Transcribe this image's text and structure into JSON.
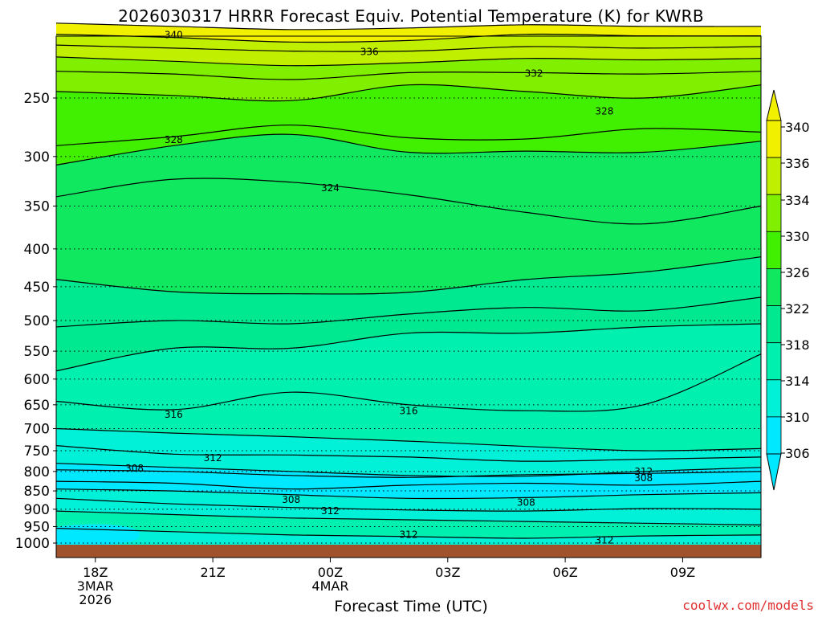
{
  "title": "2026030317 HRRR Forecast Equiv. Potential Temperature (K) for KWRB",
  "credit": "coolwx.com/models",
  "colors": {
    "c1": "#00e8ff",
    "c2": "#00f0d8",
    "c3": "#00f0b0",
    "c4": "#00e890",
    "c5": "#10e860",
    "c6": "#40f000",
    "c7": "#80f000",
    "c8": "#c0f000",
    "c9": "#f0f000",
    "ground": "#a0522d"
  },
  "chart_data": {
    "type": "contour",
    "title": "2026030317 HRRR Forecast Equiv. Potential Temperature (K) for KWRB",
    "xlabel": "Forecast Time (UTC)",
    "ylabel": "",
    "x_ticks": [
      {
        "label": "18Z",
        "sub": [
          "3MAR",
          "2026"
        ],
        "hour": 1
      },
      {
        "label": "21Z",
        "sub": [],
        "hour": 4
      },
      {
        "label": "00Z",
        "sub": [
          "4MAR"
        ],
        "hour": 7
      },
      {
        "label": "03Z",
        "sub": [],
        "hour": 10
      },
      {
        "label": "06Z",
        "sub": [],
        "hour": 13
      },
      {
        "label": "09Z",
        "sub": [],
        "hour": 16
      }
    ],
    "xlim_hours": [
      0,
      18
    ],
    "y_ticks": [
      "250",
      "300",
      "350",
      "400",
      "450",
      "500",
      "550",
      "600",
      "650",
      "700",
      "750",
      "800",
      "850",
      "900",
      "950",
      "1000"
    ],
    "y_values": [
      250,
      300,
      350,
      400,
      450,
      500,
      550,
      600,
      650,
      700,
      750,
      800,
      850,
      900,
      950,
      1000
    ],
    "ylim_hpa": [
      200,
      1000
    ],
    "colorbar_labels": [
      "340",
      "336",
      "334",
      "330",
      "326",
      "322",
      "318",
      "314",
      "310",
      "306"
    ],
    "contour_labels": [
      {
        "text": "340",
        "hour": 3.0,
        "hpa": 205
      },
      {
        "text": "336",
        "hour": 8.0,
        "hpa": 216
      },
      {
        "text": "332",
        "hour": 12.2,
        "hpa": 231
      },
      {
        "text": "328",
        "hour": 14.0,
        "hpa": 260
      },
      {
        "text": "328",
        "hour": 3.0,
        "hpa": 284
      },
      {
        "text": "324",
        "hour": 7.0,
        "hpa": 330
      },
      {
        "text": "316",
        "hour": 3.0,
        "hpa": 668
      },
      {
        "text": "316",
        "hour": 9.0,
        "hpa": 661
      },
      {
        "text": "312",
        "hour": 4.0,
        "hpa": 765
      },
      {
        "text": "308",
        "hour": 2.0,
        "hpa": 790
      },
      {
        "text": "312",
        "hour": 15.0,
        "hpa": 798
      },
      {
        "text": "308",
        "hour": 15.0,
        "hpa": 815
      },
      {
        "text": "308",
        "hour": 6.0,
        "hpa": 871
      },
      {
        "text": "308",
        "hour": 12.0,
        "hpa": 879
      },
      {
        "text": "312",
        "hour": 7.0,
        "hpa": 903
      },
      {
        "text": "312",
        "hour": 9.0,
        "hpa": 972
      },
      {
        "text": "312",
        "hour": 14.0,
        "hpa": 989
      }
    ],
    "isentropes": [
      {
        "theta": 340,
        "hpa": [
          198,
          200,
          202,
          201,
          199,
          200,
          200
        ]
      },
      {
        "theta": 338,
        "hpa": [
          205,
          207,
          210,
          209,
          205,
          206,
          206
        ]
      },
      {
        "theta": 336,
        "hpa": [
          212,
          214,
          216,
          216,
          213,
          214,
          213
        ]
      },
      {
        "theta": 334,
        "hpa": [
          220,
          223,
          226,
          224,
          221,
          222,
          221
        ]
      },
      {
        "theta": 332,
        "hpa": [
          230,
          232,
          236,
          231,
          231,
          232,
          230
        ]
      },
      {
        "theta": 330,
        "hpa": [
          245,
          248,
          252,
          240,
          245,
          250,
          240
        ]
      },
      {
        "theta": 328,
        "hpa": [
          290,
          282,
          272,
          283,
          284,
          275,
          278
        ]
      },
      {
        "theta": 326,
        "hpa": [
          308,
          290,
          280,
          296,
          295,
          296,
          286
        ]
      },
      {
        "theta": 324,
        "hpa": [
          340,
          322,
          325,
          338,
          357,
          370,
          350
        ]
      },
      {
        "theta": 322,
        "hpa": [
          440,
          457,
          460,
          458,
          440,
          430,
          410
        ]
      },
      {
        "theta": 320,
        "hpa": [
          510,
          500,
          505,
          490,
          480,
          485,
          465
        ]
      },
      {
        "theta": 318,
        "hpa": [
          585,
          545,
          545,
          520,
          520,
          510,
          505
        ]
      },
      {
        "theta": 316,
        "hpa": [
          643,
          660,
          625,
          650,
          662,
          650,
          555
        ]
      },
      {
        "theta": 314,
        "hpa": [
          700,
          710,
          718,
          728,
          740,
          750,
          745
        ]
      },
      {
        "theta": 312,
        "hpa": [
          738,
          758,
          760,
          765,
          775,
          770,
          765
        ]
      }
    ]
  }
}
